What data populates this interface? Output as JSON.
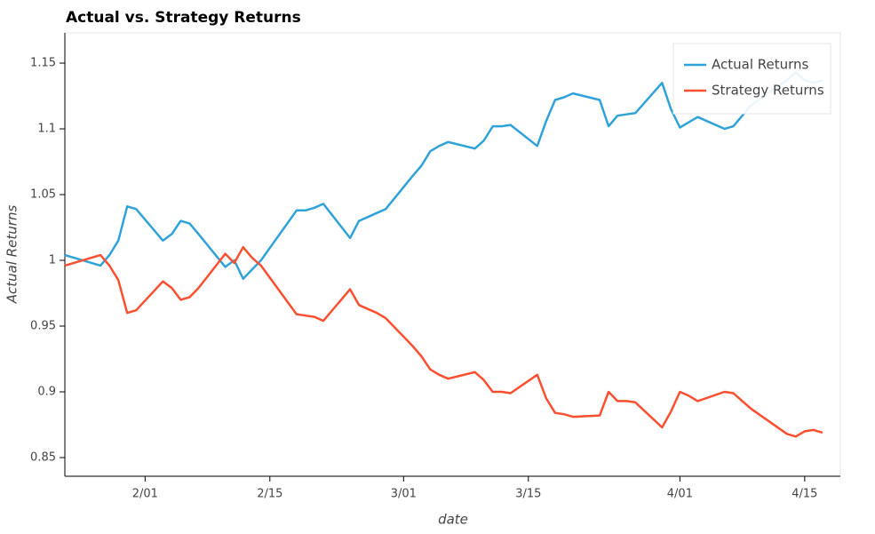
{
  "chart_data": {
    "type": "line",
    "title": "Actual vs. Strategy Returns",
    "x_label": "date",
    "y_label": "Actual Returns",
    "x": [
      "1/23",
      "1/27",
      "1/28",
      "1/29",
      "1/30",
      "1/31",
      "2/03",
      "2/04",
      "2/05",
      "2/06",
      "2/07",
      "2/10",
      "2/11",
      "2/12",
      "2/13",
      "2/14",
      "2/18",
      "2/19",
      "2/20",
      "2/21",
      "2/24",
      "2/25",
      "2/26",
      "2/27",
      "2/28",
      "3/02",
      "3/03",
      "3/04",
      "3/05",
      "3/06",
      "3/09",
      "3/10",
      "3/11",
      "3/12",
      "3/13",
      "3/16",
      "3/17",
      "3/18",
      "3/19",
      "3/20",
      "3/23",
      "3/24",
      "3/25",
      "3/26",
      "3/27",
      "3/30",
      "3/31",
      "4/01",
      "4/02",
      "4/03",
      "4/06",
      "4/07",
      "4/08",
      "4/09",
      "4/13",
      "4/14",
      "4/15",
      "4/16",
      "4/17"
    ],
    "series": [
      {
        "name": "Actual Returns",
        "color": "#30a2da",
        "values": [
          1.004,
          0.996,
          1.004,
          1.015,
          1.041,
          1.039,
          1.015,
          1.02,
          1.03,
          1.028,
          1.02,
          0.995,
          1.0,
          0.986,
          0.993,
          1.0,
          1.038,
          1.038,
          1.04,
          1.043,
          1.017,
          1.03,
          1.033,
          1.036,
          1.039,
          1.064,
          1.072,
          1.083,
          1.087,
          1.09,
          1.085,
          1.091,
          1.102,
          1.102,
          1.103,
          1.087,
          1.106,
          1.122,
          1.124,
          1.127,
          1.122,
          1.102,
          1.11,
          1.111,
          1.112,
          1.135,
          1.115,
          1.101,
          1.105,
          1.109,
          1.1,
          1.102,
          1.11,
          1.118,
          1.137,
          1.143,
          1.137,
          1.135,
          1.137
        ]
      },
      {
        "name": "Strategy Returns",
        "color": "#fc4f30",
        "values": [
          0.996,
          1.004,
          0.996,
          0.985,
          0.96,
          0.962,
          0.984,
          0.979,
          0.97,
          0.972,
          0.979,
          1.005,
          0.998,
          1.01,
          1.002,
          0.996,
          0.959,
          0.958,
          0.957,
          0.954,
          0.978,
          0.966,
          0.963,
          0.96,
          0.956,
          0.935,
          0.927,
          0.917,
          0.913,
          0.91,
          0.915,
          0.909,
          0.9,
          0.9,
          0.899,
          0.913,
          0.895,
          0.884,
          0.883,
          0.881,
          0.882,
          0.9,
          0.893,
          0.893,
          0.892,
          0.873,
          0.885,
          0.9,
          0.897,
          0.893,
          0.9,
          0.899,
          0.893,
          0.887,
          0.868,
          0.866,
          0.87,
          0.871,
          0.869
        ]
      }
    ],
    "xlim": [
      "1/23",
      "4/19"
    ],
    "xticks": [
      "2/01",
      "2/15",
      "3/01",
      "3/15",
      "4/01",
      "4/15"
    ],
    "ylim": [
      0.8358,
      1.173
    ],
    "yticks": [
      0.85,
      0.9,
      0.95,
      1,
      1.05,
      1.1,
      1.15
    ],
    "legend": "top-right"
  }
}
